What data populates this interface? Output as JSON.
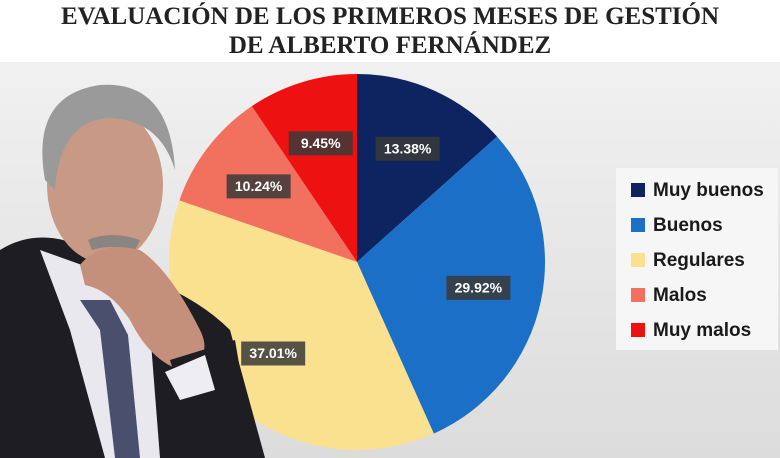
{
  "chart_data": {
    "type": "pie",
    "title": "EVALUACIÓN DE LOS PRIMEROS MESES DE GESTIÓN DE ALBERTO FERNÁNDEZ",
    "categories": [
      "Muy buenos",
      "Buenos",
      "Regulares",
      "Malos",
      "Muy malos"
    ],
    "values": [
      13.38,
      29.92,
      37.01,
      10.24,
      9.45
    ],
    "value_labels": [
      "13.38%",
      "29.92%",
      "37.01%",
      "10.24%",
      "9.45%"
    ],
    "colors": [
      "#0d2460",
      "#1b6fc6",
      "#f9e190",
      "#f1705e",
      "#ee1111"
    ],
    "legend": "right"
  }
}
